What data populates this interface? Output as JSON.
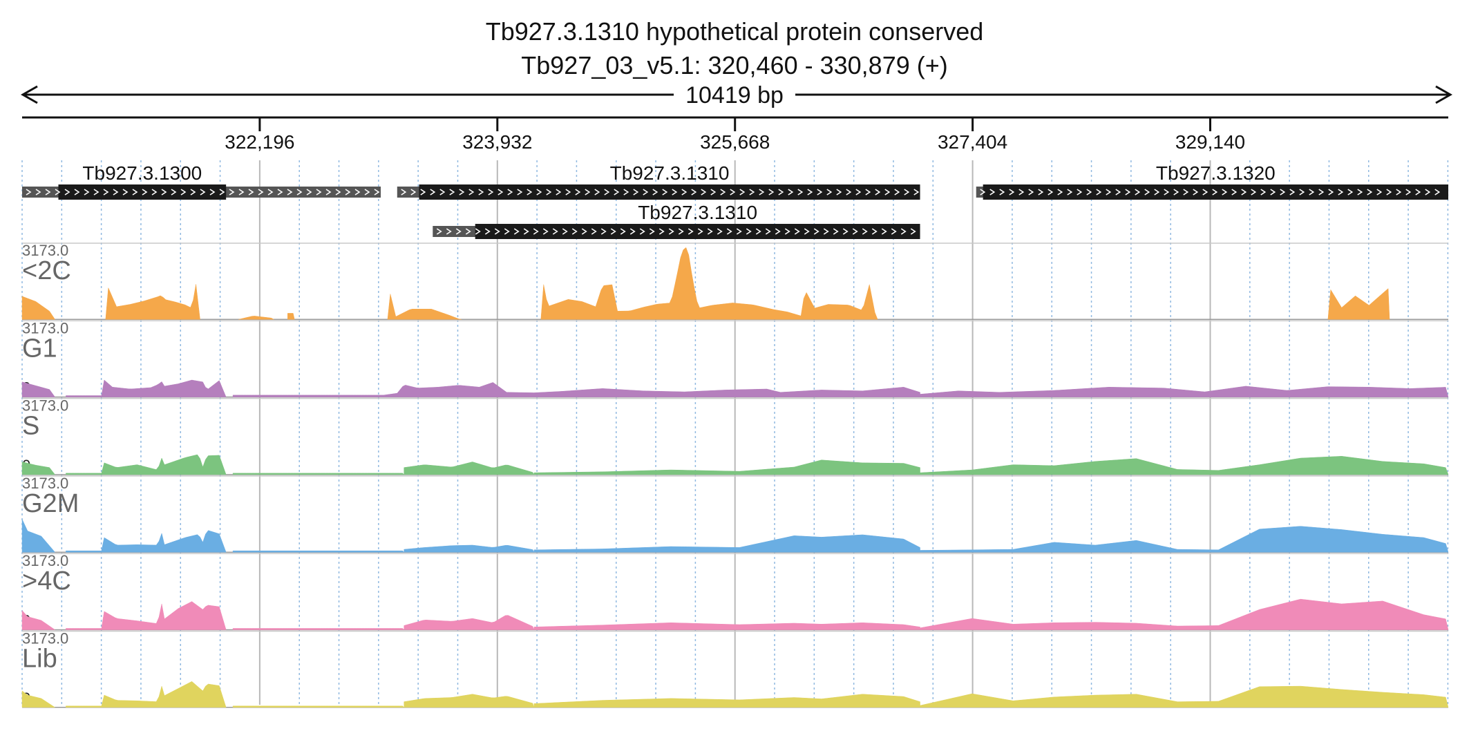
{
  "header": {
    "title": "Tb927.3.1310  hypothetical protein  conserved",
    "subtitle": "Tb927_03_v5.1: 320,460 - 330,879 (+)",
    "span_label": "10419 bp"
  },
  "chart_data": {
    "type": "area",
    "region": {
      "chrom": "Tb927_03_v5.1",
      "start": 320460,
      "end": 330879,
      "strand": "+"
    },
    "x_ticks": [
      {
        "value": 322196,
        "label": "322,196"
      },
      {
        "value": 323932,
        "label": "323,932"
      },
      {
        "value": 325668,
        "label": "325,668"
      },
      {
        "value": 327404,
        "label": "327,404"
      },
      {
        "value": 329140,
        "label": "329,140"
      }
    ],
    "genes": [
      {
        "name": "Tb927.3.1300",
        "label": "Tb927.3.1300",
        "utr_start": 320460,
        "cds_start": 320725,
        "cds_end": 321950,
        "utr_end": 323080,
        "row": 0
      },
      {
        "name": "Tb927.3.1310",
        "label": "Tb927.3.1310",
        "utr_start": 323200,
        "cds_start": 323360,
        "cds_end": 327020,
        "utr_end": 327020,
        "row": 0
      },
      {
        "name": "Tb927.3.1310",
        "label": "Tb927.3.1310",
        "utr_start": 323460,
        "cds_start": 323770,
        "cds_end": 327020,
        "utr_end": 327020,
        "row": 1
      },
      {
        "name": "Tb927.3.1320",
        "label": "Tb927.3.1320",
        "utr_start": 327430,
        "cds_start": 327480,
        "cds_end": 330879,
        "utr_end": 330879,
        "row": 0
      }
    ],
    "track_max": "3173.0",
    "track_min": "0",
    "ylim": [
      0,
      3173
    ],
    "bin_width": 100,
    "series": [
      {
        "name": "<2C",
        "color": "#f5a84a",
        "segments": [
          {
            "x": [
              320460,
              320560,
              320660,
              320700
            ],
            "y": [
              980,
              760,
              350,
              0
            ]
          },
          {
            "x": [
              321070,
              321080,
              321150,
              321250,
              321350,
              321450,
              321480,
              321500,
              321580,
              321650,
              321700,
              321730,
              321760
            ],
            "y": [
              0,
              1470,
              540,
              640,
              780,
              960,
              1030,
              850,
              740,
              620,
              480,
              1490,
              0
            ]
          },
          {
            "x": [
              322040,
              322150,
              322280,
              322300
            ],
            "y": [
              0,
              150,
              60,
              0
            ]
          },
          {
            "x": [
              322400,
              322450
            ],
            "y": [
              260,
              260
            ]
          },
          {
            "x": [
              323130,
              323150,
              323190,
              323300,
              323450,
              323580,
              323660,
              323670
            ],
            "y": [
              0,
              1080,
              120,
              440,
              440,
              180,
              0,
              0
            ]
          },
          {
            "x": [
              324250,
              324270,
              324300,
              324450,
              324550,
              324650,
              324700,
              324780,
              324800,
              324900,
              325000,
              325100,
              325200,
              325240,
              325280,
              325320,
              325360,
              325400,
              325500,
              325650,
              325800,
              325950,
              326050,
              326150,
              326180,
              326250,
              326350,
              326500,
              326600,
              326650,
              326700,
              326710
            ],
            "y": [
              0,
              1480,
              550,
              850,
              760,
              540,
              1430,
              1480,
              350,
              360,
              520,
              650,
              700,
              1760,
              2900,
              3100,
              1650,
              480,
              600,
              700,
              620,
              420,
              320,
              150,
              1250,
              480,
              640,
              610,
              380,
              1480,
              0,
              0
            ]
          },
          {
            "x": [
              330000,
              330020,
              330100,
              330200,
              330300,
              330440,
              330450
            ],
            "y": [
              0,
              1260,
              500,
              1000,
              600,
              1310,
              0
            ]
          }
        ]
      },
      {
        "name": "G1",
        "color": "#b57fbd",
        "segments": [
          {
            "x": [
              320460,
              320560,
              320660,
              320700
            ],
            "y": [
              640,
              480,
              320,
              0
            ]
          },
          {
            "x": [
              320780,
              321040,
              321060,
              321120,
              321250,
              321400,
              321450,
              321480,
              321500,
              321600,
              321700,
              321780,
              321810,
              321900,
              321950
            ],
            "y": [
              60,
              60,
              720,
              420,
              340,
              400,
              520,
              650,
              460,
              560,
              720,
              640,
              300,
              700,
              0
            ]
          },
          {
            "x": [
              322000,
              323100,
              323200
            ],
            "y": [
              80,
              80,
              160
            ]
          },
          {
            "x": [
              323200,
              323250,
              323350,
              323500,
              323650,
              323800,
              323900,
              324000,
              324200,
              324400
            ],
            "y": [
              160,
              520,
              380,
              420,
              500,
              420,
              620,
              200,
              180,
              240
            ]
          },
          {
            "x": [
              324400,
              324700,
              325000,
              325300,
              325600,
              325900,
              326000,
              326300,
              326600,
              326900,
              327020
            ],
            "y": [
              240,
              360,
              260,
              220,
              300,
              340,
              200,
              300,
              260,
              420,
              200
            ]
          },
          {
            "x": [
              327020,
              327300,
              327600,
              328000,
              328400,
              328800,
              329100,
              329400,
              329700,
              330000,
              330300,
              330600,
              330879
            ],
            "y": [
              120,
              260,
              200,
              280,
              420,
              380,
              220,
              460,
              280,
              440,
              420,
              360,
              420
            ]
          }
        ]
      },
      {
        "name": "S",
        "color": "#7cc47f",
        "segments": [
          {
            "x": [
              320460,
              320560,
              320660,
              320700
            ],
            "y": [
              540,
              400,
              300,
              0
            ]
          },
          {
            "x": [
              320780,
              321040,
              321060,
              321150,
              321300,
              321450,
              321480,
              321500,
              321650,
              321750,
              321780,
              321810,
              321900,
              321950
            ],
            "y": [
              60,
              60,
              500,
              300,
              420,
              200,
              700,
              420,
              720,
              860,
              320,
              800,
              820,
              0
            ]
          },
          {
            "x": [
              322000,
              323250
            ],
            "y": [
              60,
              60
            ]
          },
          {
            "x": [
              323250,
              323400,
              323600,
              323750,
              323900,
              324000,
              324200
            ],
            "y": [
              300,
              420,
              320,
              540,
              280,
              420,
              80
            ]
          },
          {
            "x": [
              324200,
              324700,
              325200,
              325700,
              326100,
              326300,
              326600,
              326900,
              327020
            ],
            "y": [
              80,
              120,
              200,
              140,
              320,
              620,
              500,
              480,
              300
            ]
          },
          {
            "x": [
              327020,
              327400,
              327700,
              328000,
              328300,
              328600,
              328900,
              329200,
              329500,
              329800,
              330100,
              330400,
              330700,
              330879
            ],
            "y": [
              80,
              200,
              420,
              380,
              560,
              680,
              220,
              180,
              420,
              700,
              780,
              560,
              460,
              280
            ]
          }
        ]
      },
      {
        "name": "G2M",
        "color": "#6aaee3",
        "segments": [
          {
            "x": [
              320460,
              320500,
              320600,
              320700
            ],
            "y": [
              1400,
              900,
              680,
              0
            ]
          },
          {
            "x": [
              320780,
              321040,
              321060,
              321150,
              321300,
              321450,
              321480,
              321500,
              321650,
              321750,
              321780,
              321810,
              321900,
              321950
            ],
            "y": [
              60,
              60,
              620,
              300,
              320,
              300,
              800,
              320,
              620,
              760,
              420,
              940,
              780,
              0
            ]
          },
          {
            "x": [
              322000,
              323250
            ],
            "y": [
              60,
              60
            ]
          },
          {
            "x": [
              323250,
              323400,
              323600,
              323750,
              323900,
              324000,
              324200
            ],
            "y": [
              120,
              200,
              280,
              300,
              200,
              300,
              100
            ]
          },
          {
            "x": [
              324200,
              324700,
              325200,
              325700,
              326100,
              326300,
              326600,
              326900,
              327020
            ],
            "y": [
              100,
              140,
              240,
              200,
              700,
              640,
              740,
              560,
              200
            ]
          },
          {
            "x": [
              327020,
              327400,
              327700,
              328000,
              328300,
              328600,
              328900,
              329200,
              329500,
              329800,
              330100,
              330400,
              330700,
              330879
            ],
            "y": [
              80,
              100,
              120,
              420,
              300,
              500,
              120,
              100,
              980,
              1100,
              960,
              760,
              620,
              340
            ]
          }
        ]
      },
      {
        "name": ">4C",
        "color": "#f08bb8",
        "segments": [
          {
            "x": [
              320460,
              320500,
              320600,
              320700
            ],
            "y": [
              820,
              560,
              400,
              0
            ]
          },
          {
            "x": [
              320780,
              321040,
              321060,
              321150,
              321300,
              321450,
              321480,
              321500,
              321600,
              321700,
              321780,
              321810,
              321900,
              321950
            ],
            "y": [
              60,
              60,
              780,
              480,
              380,
              260,
              1100,
              460,
              900,
              1200,
              860,
              1050,
              980,
              0
            ]
          },
          {
            "x": [
              322000,
              323250
            ],
            "y": [
              60,
              60
            ]
          },
          {
            "x": [
              323250,
              323400,
              323600,
              323750,
              323900,
              324000,
              324200
            ],
            "y": [
              180,
              420,
              360,
              480,
              300,
              640,
              120
            ]
          },
          {
            "x": [
              324200,
              324700,
              325200,
              325700,
              326100,
              326300,
              326600,
              326900,
              327020
            ],
            "y": [
              120,
              200,
              300,
              220,
              280,
              240,
              300,
              220,
              120
            ]
          },
          {
            "x": [
              327020,
              327400,
              327700,
              328000,
              328300,
              328600,
              328900,
              329200,
              329500,
              329800,
              330100,
              330400,
              330700,
              330879
            ],
            "y": [
              80,
              480,
              240,
              300,
              320,
              280,
              160,
              180,
              860,
              1300,
              1100,
              1220,
              640,
              440
            ]
          }
        ]
      },
      {
        "name": "Lib",
        "color": "#e0d45e",
        "segments": [
          {
            "x": [
              320460,
              320500,
              320600,
              320700
            ],
            "y": [
              700,
              520,
              380,
              0
            ]
          },
          {
            "x": [
              320780,
              321040,
              321060,
              321150,
              321300,
              321450,
              321480,
              321500,
              321600,
              321700,
              321780,
              321810,
              321900,
              321950
            ],
            "y": [
              60,
              60,
              520,
              300,
              280,
              240,
              900,
              500,
              800,
              1100,
              700,
              1000,
              920,
              0
            ]
          },
          {
            "x": [
              322000,
              323250
            ],
            "y": [
              60,
              60
            ]
          },
          {
            "x": [
              323250,
              323400,
              323600,
              323750,
              323900,
              324000,
              324200
            ],
            "y": [
              240,
              380,
              420,
              560,
              400,
              480,
              160
            ]
          },
          {
            "x": [
              324200,
              324700,
              325200,
              325700,
              326100,
              326300,
              326600,
              326900,
              327020
            ],
            "y": [
              160,
              300,
              380,
              320,
              420,
              360,
              560,
              460,
              240
            ]
          },
          {
            "x": [
              327020,
              327400,
              327700,
              328000,
              328300,
              328600,
              328900,
              329200,
              329500,
              329800,
              330100,
              330400,
              330700,
              330879
            ],
            "y": [
              80,
              580,
              280,
              440,
              520,
              560,
              240,
              260,
              880,
              900,
              760,
              640,
              540,
              420
            ]
          }
        ]
      }
    ]
  }
}
